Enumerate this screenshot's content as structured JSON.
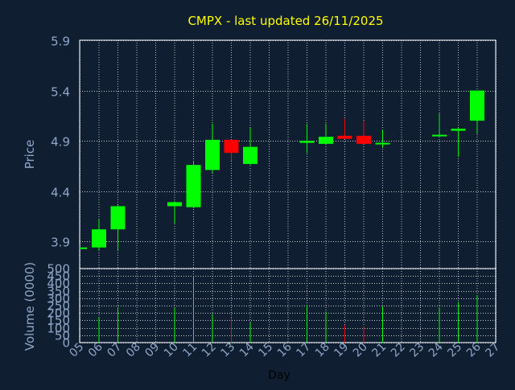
{
  "colors": {
    "background": "#0f1f31",
    "panel": "#0f1f31",
    "axis": "#ffffff",
    "grid": "#ffffff",
    "title": "#ffff00",
    "label": "#8fa6c8",
    "up": "#00ff00",
    "down": "#ff0000"
  },
  "chart_data": {
    "type": "candlestick",
    "title": "CMPX - last updated 26/11/2025",
    "price_panel": {
      "ylabel": "Price",
      "ylim": [
        3.63,
        5.9
      ],
      "yticks": [
        3.9,
        4.4,
        4.9,
        5.4,
        5.9
      ],
      "ytick_labels": [
        "3.9",
        "4.4",
        "4.9",
        "5.4",
        "5.9"
      ],
      "grid": true
    },
    "volume_panel": {
      "ylabel": "Volume (0000)",
      "ylim": [
        0,
        500
      ],
      "yticks": [
        0,
        50,
        100,
        150,
        200,
        250,
        300,
        350,
        400,
        450,
        500
      ],
      "ytick_labels": [
        "0",
        "50",
        "100",
        "150",
        "200",
        "250",
        "300",
        "350",
        "400",
        "450",
        "500"
      ],
      "grid": true
    },
    "xlabel": "Day",
    "xticks": [
      "05",
      "06",
      "07",
      "08",
      "09",
      "10",
      "11",
      "12",
      "13",
      "14",
      "15",
      "16",
      "17",
      "18",
      "19",
      "20",
      "21",
      "22",
      "23",
      "24",
      "25",
      "26",
      "27"
    ],
    "candles": [
      {
        "day": 5,
        "open": 3.84,
        "close": 3.84,
        "high": 3.84,
        "low": 3.84,
        "volume": 0
      },
      {
        "day": 6,
        "open": 3.84,
        "close": 4.02,
        "high": 4.12,
        "low": 3.81,
        "volume": 170
      },
      {
        "day": 7,
        "open": 4.02,
        "close": 4.25,
        "high": 4.26,
        "low": 3.81,
        "volume": 240
      },
      {
        "day": 10,
        "open": 4.25,
        "close": 4.29,
        "high": 4.3,
        "low": 4.08,
        "volume": 235
      },
      {
        "day": 11,
        "open": 4.24,
        "close": 4.66,
        "high": 4.69,
        "low": 4.23,
        "volume": 450
      },
      {
        "day": 12,
        "open": 4.61,
        "close": 4.91,
        "high": 5.07,
        "low": 4.58,
        "volume": 195
      },
      {
        "day": 13,
        "open": 4.91,
        "close": 4.78,
        "high": 4.91,
        "low": 4.7,
        "volume": 170
      },
      {
        "day": 14,
        "open": 4.67,
        "close": 4.84,
        "high": 5.03,
        "low": 4.66,
        "volume": 135
      },
      {
        "day": 17,
        "open": 4.88,
        "close": 4.9,
        "high": 5.07,
        "low": 4.78,
        "volume": 255
      },
      {
        "day": 18,
        "open": 4.87,
        "close": 4.94,
        "high": 5.07,
        "low": 4.87,
        "volume": 210
      },
      {
        "day": 19,
        "open": 4.95,
        "close": 4.92,
        "high": 5.12,
        "low": 4.92,
        "volume": 120
      },
      {
        "day": 20,
        "open": 4.95,
        "close": 4.87,
        "high": 5.1,
        "low": 4.87,
        "volume": 110
      },
      {
        "day": 21,
        "open": 4.87,
        "close": 4.88,
        "high": 5.01,
        "low": 4.83,
        "volume": 245
      },
      {
        "day": 24,
        "open": 4.95,
        "close": 4.96,
        "high": 5.17,
        "low": 4.95,
        "volume": 240
      },
      {
        "day": 25,
        "open": 5.0,
        "close": 5.02,
        "high": 5.03,
        "low": 4.74,
        "volume": 275
      },
      {
        "day": 26,
        "open": 5.1,
        "close": 5.4,
        "high": 5.4,
        "low": 4.97,
        "volume": 320
      }
    ]
  }
}
